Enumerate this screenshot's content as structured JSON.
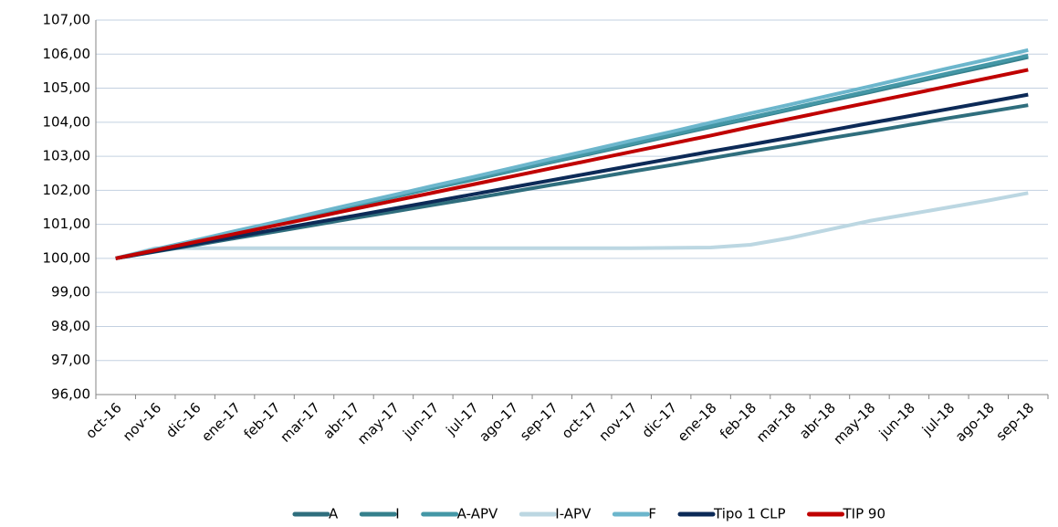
{
  "chart_data": {
    "type": "line",
    "categories": [
      "oct-16",
      "nov-16",
      "dic-16",
      "ene-17",
      "feb-17",
      "mar-17",
      "abr-17",
      "may-17",
      "jun-17",
      "jul-17",
      "ago-17",
      "sep-17",
      "oct-17",
      "nov-17",
      "dic-17",
      "ene-18",
      "feb-18",
      "mar-18",
      "abr-18",
      "may-18",
      "jun-18",
      "jul-18",
      "ago-18",
      "sep-18"
    ],
    "series": [
      {
        "name": "A",
        "color": "#2f6e7d",
        "values": [
          100,
          100.2,
          100.39,
          100.59,
          100.78,
          100.98,
          101.18,
          101.37,
          101.57,
          101.76,
          101.96,
          102.16,
          102.35,
          102.55,
          102.74,
          102.94,
          103.14,
          103.33,
          103.53,
          103.72,
          103.92,
          104.12,
          104.31,
          104.5
        ]
      },
      {
        "name": "I",
        "color": "#35808c",
        "values": [
          100,
          100.26,
          100.51,
          100.77,
          101.03,
          101.29,
          101.54,
          101.8,
          102.06,
          102.31,
          102.57,
          102.83,
          103.08,
          103.34,
          103.6,
          103.86,
          104.11,
          104.37,
          104.63,
          104.88,
          105.14,
          105.4,
          105.65,
          105.91
        ]
      },
      {
        "name": "A-APV",
        "color": "#4497a6",
        "values": [
          100,
          100.26,
          100.52,
          100.78,
          101.04,
          101.3,
          101.55,
          101.81,
          102.07,
          102.33,
          102.59,
          102.85,
          103.11,
          103.37,
          103.63,
          103.89,
          104.14,
          104.4,
          104.66,
          104.92,
          105.18,
          105.44,
          105.7,
          105.96
        ]
      },
      {
        "name": "I-APV",
        "color": "#bcd7e2",
        "values": [
          100,
          100.3,
          100.3,
          100.3,
          100.3,
          100.3,
          100.3,
          100.3,
          100.3,
          100.3,
          100.3,
          100.3,
          100.3,
          100.3,
          100.31,
          100.32,
          100.4,
          100.6,
          100.85,
          101.1,
          101.3,
          101.5,
          101.7,
          101.92
        ]
      },
      {
        "name": "F",
        "color": "#6cb6cc",
        "values": [
          100,
          100.27,
          100.53,
          100.8,
          101.06,
          101.33,
          101.6,
          101.86,
          102.13,
          102.39,
          102.66,
          102.93,
          103.19,
          103.46,
          103.72,
          103.99,
          104.26,
          104.52,
          104.79,
          105.05,
          105.32,
          105.59,
          105.85,
          106.12
        ]
      },
      {
        "name": "Tipo 1 CLP",
        "color": "#0c2a57",
        "values": [
          100,
          100.21,
          100.42,
          100.63,
          100.84,
          101.05,
          101.25,
          101.46,
          101.67,
          101.88,
          102.09,
          102.3,
          102.51,
          102.72,
          102.93,
          103.14,
          103.34,
          103.55,
          103.76,
          103.97,
          104.18,
          104.39,
          104.6,
          104.81
        ]
      },
      {
        "name": "TIP 90",
        "color": "#c00000",
        "values": [
          100,
          100.24,
          100.48,
          100.72,
          100.96,
          101.2,
          101.45,
          101.69,
          101.93,
          102.17,
          102.41,
          102.65,
          102.89,
          103.13,
          103.37,
          103.61,
          103.86,
          104.1,
          104.34,
          104.58,
          104.82,
          105.06,
          105.3,
          105.54
        ]
      }
    ],
    "ylim": [
      96,
      107
    ],
    "yticks": [
      {
        "value": 96,
        "label": "96,00"
      },
      {
        "value": 97,
        "label": "97,00"
      },
      {
        "value": 98,
        "label": "98,00"
      },
      {
        "value": 99,
        "label": "99,00"
      },
      {
        "value": 100,
        "label": "100,00"
      },
      {
        "value": 101,
        "label": "101,00"
      },
      {
        "value": 102,
        "label": "102,00"
      },
      {
        "value": 103,
        "label": "103,00"
      },
      {
        "value": 104,
        "label": "104,00"
      },
      {
        "value": 105,
        "label": "105,00"
      },
      {
        "value": 106,
        "label": "106,00"
      },
      {
        "value": 107,
        "label": "107,00"
      }
    ],
    "grid": true,
    "legend": "bottom"
  }
}
